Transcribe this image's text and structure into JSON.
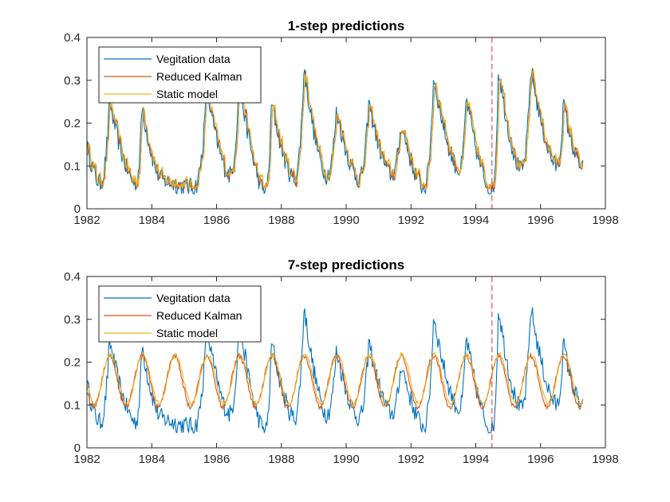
{
  "colors": {
    "data": "#0072bd",
    "kalman": "#d95319",
    "static": "#edb120",
    "split": "#e0302c",
    "axis": "#262626"
  },
  "chart_data": [
    {
      "type": "line",
      "title": "1-step predictions",
      "xlabel": "",
      "ylabel": "",
      "xlim": [
        1982,
        1998
      ],
      "ylim": [
        0,
        0.4
      ],
      "xticks": [
        "1982",
        "1984",
        "1986",
        "1988",
        "1990",
        "1992",
        "1994",
        "1996",
        "1998"
      ],
      "yticks": [
        "0",
        "0.1",
        "0.2",
        "0.3",
        "0.4"
      ],
      "legend": {
        "placement": "top-left",
        "entries": [
          "Vegitation data",
          "Reduced Kalman",
          "Static model"
        ]
      },
      "split_marker_x": 1994.5,
      "peaks_data": [
        [
          1982.7,
          0.25
        ],
        [
          1983.7,
          0.24
        ],
        [
          1985.7,
          0.28
        ],
        [
          1986.7,
          0.3
        ],
        [
          1987.7,
          0.25
        ],
        [
          1988.7,
          0.33
        ],
        [
          1989.7,
          0.23
        ],
        [
          1990.7,
          0.25
        ],
        [
          1991.7,
          0.2
        ],
        [
          1992.7,
          0.31
        ],
        [
          1993.7,
          0.26
        ],
        [
          1994.7,
          0.33
        ],
        [
          1995.7,
          0.33
        ],
        [
          1996.7,
          0.245
        ]
      ],
      "troughs_data": [
        [
          1982.4,
          0.06
        ],
        [
          1983.5,
          0.06
        ],
        [
          1984.3,
          0.07
        ],
        [
          1985.3,
          0.05
        ],
        [
          1986.4,
          0.08
        ],
        [
          1987.5,
          0.04
        ],
        [
          1988.4,
          0.07
        ],
        [
          1989.4,
          0.08
        ],
        [
          1990.4,
          0.07
        ],
        [
          1991.4,
          0.08
        ],
        [
          1992.4,
          0.05
        ],
        [
          1993.5,
          0.09
        ],
        [
          1994.5,
          0.04
        ],
        [
          1995.4,
          0.09
        ],
        [
          1996.5,
          0.1
        ],
        [
          1997.3,
          0.095
        ]
      ],
      "series": [
        {
          "name": "Vegitation data",
          "color": "#0072bd",
          "kind": "data"
        },
        {
          "name": "Reduced Kalman",
          "color": "#d95319",
          "kind": "kalman1"
        },
        {
          "name": "Static model",
          "color": "#edb120",
          "kind": "static1"
        }
      ]
    },
    {
      "type": "line",
      "title": "7-step predictions",
      "xlabel": "",
      "ylabel": "",
      "xlim": [
        1982,
        1998
      ],
      "ylim": [
        0,
        0.4
      ],
      "xticks": [
        "1982",
        "1984",
        "1986",
        "1988",
        "1990",
        "1992",
        "1994",
        "1996",
        "1998"
      ],
      "yticks": [
        "0",
        "0.1",
        "0.2",
        "0.3",
        "0.4"
      ],
      "legend": {
        "placement": "top-left",
        "entries": [
          "Vegitation data",
          "Reduced Kalman",
          "Static model"
        ]
      },
      "split_marker_x": 1994.5,
      "peaks_data": [
        [
          1982.7,
          0.25
        ],
        [
          1983.7,
          0.24
        ],
        [
          1985.7,
          0.28
        ],
        [
          1986.7,
          0.3
        ],
        [
          1987.7,
          0.25
        ],
        [
          1988.7,
          0.33
        ],
        [
          1989.7,
          0.23
        ],
        [
          1990.7,
          0.25
        ],
        [
          1991.7,
          0.2
        ],
        [
          1992.7,
          0.31
        ],
        [
          1993.7,
          0.26
        ],
        [
          1994.7,
          0.33
        ],
        [
          1995.7,
          0.33
        ],
        [
          1996.7,
          0.245
        ]
      ],
      "troughs_data": [
        [
          1982.4,
          0.06
        ],
        [
          1983.5,
          0.06
        ],
        [
          1984.3,
          0.07
        ],
        [
          1985.3,
          0.05
        ],
        [
          1986.4,
          0.08
        ],
        [
          1987.5,
          0.04
        ],
        [
          1988.4,
          0.07
        ],
        [
          1989.4,
          0.08
        ],
        [
          1990.4,
          0.07
        ],
        [
          1991.4,
          0.08
        ],
        [
          1992.4,
          0.05
        ],
        [
          1993.5,
          0.09
        ],
        [
          1994.5,
          0.04
        ],
        [
          1995.4,
          0.09
        ],
        [
          1996.5,
          0.1
        ],
        [
          1997.3,
          0.095
        ]
      ],
      "seasonal_prediction": {
        "mean": 0.16,
        "amplitude": 0.06,
        "peak_month": 9
      },
      "series": [
        {
          "name": "Vegitation data",
          "color": "#0072bd",
          "kind": "data"
        },
        {
          "name": "Reduced Kalman",
          "color": "#d95319",
          "kind": "kalman7"
        },
        {
          "name": "Static model",
          "color": "#edb120",
          "kind": "static7"
        }
      ]
    }
  ]
}
